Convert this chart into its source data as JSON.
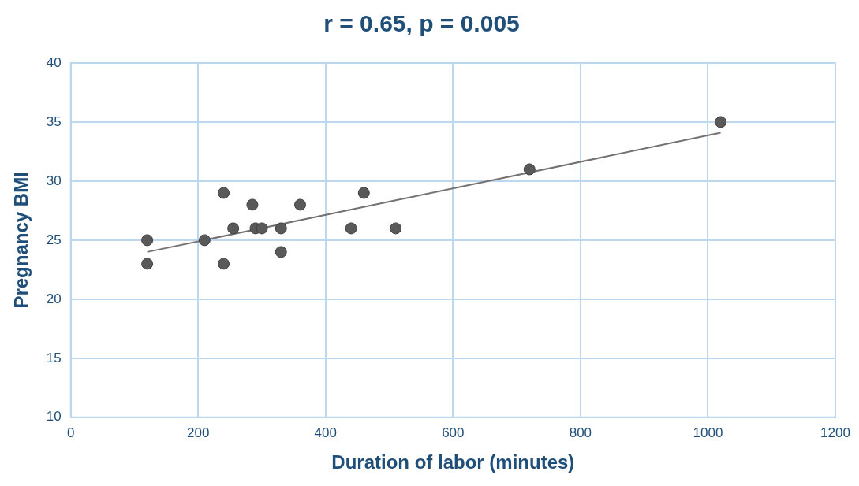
{
  "chart_data": {
    "type": "scatter",
    "title": "r = 0.65, p = 0.005",
    "xlabel": "Duration of labor (minutes)",
    "ylabel": "Pregnancy BMI",
    "series": [
      {
        "type": "scatter",
        "marker": "circle",
        "color": "#595959",
        "x": [
          120,
          120,
          210,
          240,
          240,
          255,
          285,
          290,
          300,
          330,
          330,
          360,
          440,
          460,
          510,
          720,
          1020
        ],
        "values": [
          25,
          23,
          25,
          29,
          23,
          26,
          28,
          26,
          26,
          26,
          24,
          28,
          26,
          29,
          26,
          31,
          35
        ]
      },
      {
        "type": "line",
        "color": "#767171",
        "x": [
          120,
          1020
        ],
        "values": [
          24.0,
          34.1
        ]
      }
    ],
    "xlim": [
      0,
      1200
    ],
    "xticks": [
      0,
      200,
      400,
      600,
      800,
      1000,
      1200
    ],
    "ylim": [
      10,
      40
    ],
    "yticks": [
      10,
      15,
      20,
      25,
      30,
      35,
      40
    ],
    "grid": true,
    "legend": false,
    "line_style": "solid"
  }
}
